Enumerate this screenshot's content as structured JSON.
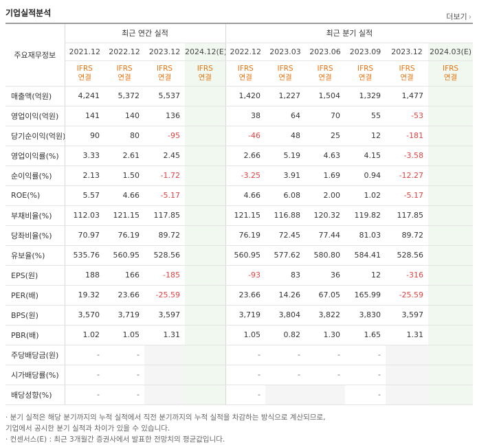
{
  "header": {
    "title": "기업실적분석",
    "more_label": "더보기",
    "more_glyph": "›"
  },
  "table": {
    "row_header_label": "주요재무정보",
    "group_annual": "최근 연간 실적",
    "group_quarter": "최근 분기 실적",
    "periods": [
      "2021.12",
      "2022.12",
      "2023.12",
      "2024.12(E)",
      "2022.12",
      "2023.03",
      "2023.06",
      "2023.09",
      "2023.12",
      "2024.03(E)"
    ],
    "ifrs_line1": "IFRS",
    "ifrs_line2": "연결",
    "rows": [
      {
        "label": "매출액(억원)",
        "values": [
          "4,241",
          "5,372",
          "5,537",
          "",
          "1,420",
          "1,227",
          "1,504",
          "1,329",
          "1,477",
          ""
        ]
      },
      {
        "label": "영업이익(억원)",
        "values": [
          "141",
          "140",
          "136",
          "",
          "38",
          "64",
          "70",
          "55",
          "-53",
          ""
        ]
      },
      {
        "label": "당기순이익(억원)",
        "values": [
          "90",
          "80",
          "-95",
          "",
          "-46",
          "48",
          "25",
          "12",
          "-181",
          ""
        ]
      },
      {
        "label": "영업이익률(%)",
        "values": [
          "3.33",
          "2.61",
          "2.45",
          "",
          "2.66",
          "5.19",
          "4.63",
          "4.15",
          "-3.58",
          ""
        ]
      },
      {
        "label": "순이익률(%)",
        "values": [
          "2.13",
          "1.50",
          "-1.72",
          "",
          "-3.25",
          "3.91",
          "1.69",
          "0.94",
          "-12.27",
          ""
        ]
      },
      {
        "label": "ROE(%)",
        "values": [
          "5.57",
          "4.66",
          "-5.17",
          "",
          "4.66",
          "6.08",
          "2.00",
          "1.02",
          "-5.17",
          ""
        ]
      },
      {
        "label": "부채비율(%)",
        "values": [
          "112.03",
          "121.15",
          "117.85",
          "",
          "121.15",
          "116.88",
          "120.32",
          "119.82",
          "117.85",
          ""
        ]
      },
      {
        "label": "당좌비율(%)",
        "values": [
          "70.97",
          "76.19",
          "89.72",
          "",
          "76.19",
          "72.45",
          "77.44",
          "81.03",
          "89.72",
          ""
        ]
      },
      {
        "label": "유보율(%)",
        "values": [
          "535.76",
          "560.95",
          "528.56",
          "",
          "560.95",
          "577.62",
          "580.80",
          "584.41",
          "528.56",
          ""
        ]
      },
      {
        "label": "EPS(원)",
        "values": [
          "188",
          "166",
          "-185",
          "",
          "-93",
          "83",
          "36",
          "12",
          "-316",
          ""
        ]
      },
      {
        "label": "PER(배)",
        "values": [
          "19.32",
          "23.66",
          "-25.59",
          "",
          "23.66",
          "14.26",
          "67.05",
          "165.99",
          "-25.59",
          ""
        ]
      },
      {
        "label": "BPS(원)",
        "values": [
          "3,570",
          "3,719",
          "3,597",
          "",
          "3,719",
          "3,804",
          "3,822",
          "3,830",
          "3,597",
          ""
        ]
      },
      {
        "label": "PBR(배)",
        "values": [
          "1.02",
          "1.05",
          "1.31",
          "",
          "1.05",
          "0.82",
          "1.30",
          "1.65",
          "1.31",
          ""
        ]
      },
      {
        "label": "주당배당금(원)",
        "values": [
          "-",
          "-",
          "",
          "",
          "-",
          "-",
          "-",
          "-",
          "",
          ""
        ]
      },
      {
        "label": "시가배당률(%)",
        "values": [
          "-",
          "-",
          "",
          "",
          "-",
          "-",
          "-",
          "-",
          "",
          ""
        ]
      },
      {
        "label": "배당성향(%)",
        "values": [
          "-",
          "-",
          "",
          "",
          "-",
          "",
          "",
          "-",
          "",
          ""
        ]
      }
    ]
  },
  "notes": [
    "· 분기 실적은 해당 분기까지의 누적 실적에서 직전 분기까지의 누적 실적을 차감하는 방식으로 계산되므로,",
    "  기업에서 공시한 분기 실적과 차이가 있을 수 있습니다.",
    "· 컨센서스(E) : 최근 3개월간 증권사에서 발표한 전망치의 평균값입니다."
  ]
}
